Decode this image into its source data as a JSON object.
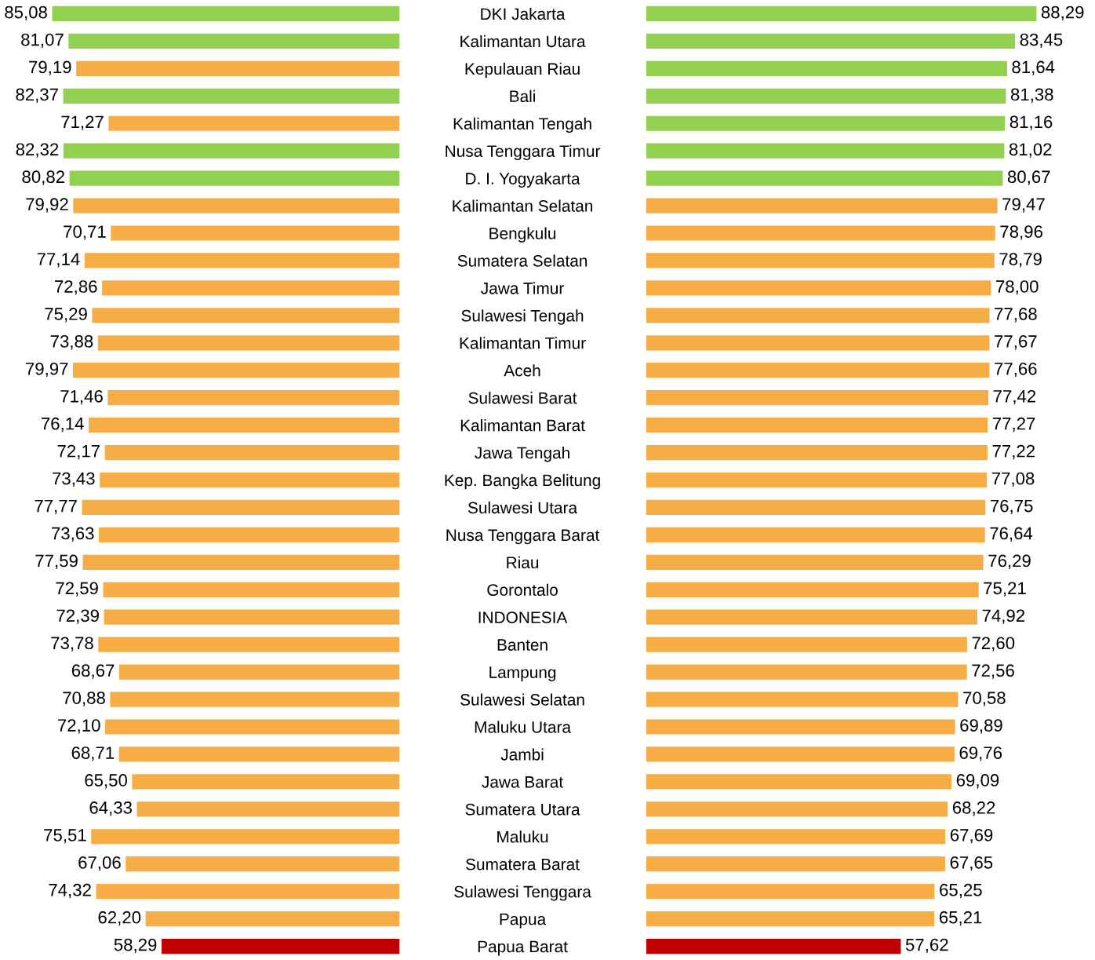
{
  "chart_data": [
    {
      "type": "bar",
      "orientation": "horizontal",
      "tick_labels": "y",
      "categories": [
        "DKI Jakarta",
        "Kalimantan Utara",
        "Kepulauan Riau",
        "Bali",
        "Kalimantan Tengah",
        "Nusa Tenggara Timur",
        "D. I. Yogyakarta",
        "Kalimantan Selatan",
        "Bengkulu",
        "Sumatera Selatan",
        "Jawa Timur",
        "Sulawesi Tengah",
        "Kalimantan Timur",
        "Aceh",
        "Sulawesi Barat",
        "Kalimantan Barat",
        "Jawa Tengah",
        "Kep. Bangka Belitung",
        "Sulawesi Utara",
        "Nusa Tenggara Barat",
        "Riau",
        "Gorontalo",
        "INDONESIA",
        "Banten",
        "Lampung",
        "Sulawesi Selatan",
        "Maluku Utara",
        "Jambi",
        "Jawa Barat",
        "Sumatera Utara",
        "Maluku",
        "Sumatera Barat",
        "Sulawesi Tenggara",
        "Papua",
        "Papua Barat"
      ],
      "values": [
        85.08,
        81.07,
        79.19,
        82.37,
        71.27,
        82.32,
        80.82,
        79.92,
        70.71,
        77.14,
        72.86,
        75.29,
        73.88,
        79.97,
        71.46,
        76.14,
        72.17,
        73.43,
        77.77,
        73.63,
        77.59,
        72.59,
        72.39,
        73.78,
        68.67,
        70.88,
        72.1,
        68.71,
        65.5,
        64.33,
        75.51,
        67.06,
        74.32,
        62.2,
        58.29
      ],
      "value_labels": [
        "85,08",
        "81,07",
        "79,19",
        "82,37",
        "71,27",
        "82,32",
        "80,82",
        "79,92",
        "70,71",
        "77,14",
        "72,86",
        "75,29",
        "73,88",
        "79,97",
        "71,46",
        "76,14",
        "72,17",
        "73,43",
        "77,77",
        "73,63",
        "77,59",
        "72,59",
        "72,39",
        "73,78",
        "68,67",
        "70,88",
        "72,10",
        "68,71",
        "65,50",
        "64,33",
        "75,51",
        "67,06",
        "74,32",
        "62,20",
        "58,29"
      ],
      "colors": [
        "#92d050",
        "#92d050",
        "#f6ad45",
        "#92d050",
        "#f6ad45",
        "#92d050",
        "#92d050",
        "#f6ad45",
        "#f6ad45",
        "#f6ad45",
        "#f6ad45",
        "#f6ad45",
        "#f6ad45",
        "#f6ad45",
        "#f6ad45",
        "#f6ad45",
        "#f6ad45",
        "#f6ad45",
        "#f6ad45",
        "#f6ad45",
        "#f6ad45",
        "#f6ad45",
        "#f6ad45",
        "#f6ad45",
        "#f6ad45",
        "#f6ad45",
        "#f6ad45",
        "#f6ad45",
        "#f6ad45",
        "#f6ad45",
        "#f6ad45",
        "#f6ad45",
        "#f6ad45",
        "#f6ad45",
        "#c00000"
      ]
    },
    {
      "type": "bar",
      "orientation": "horizontal",
      "tick_labels": false,
      "categories": [
        null,
        null,
        null,
        null,
        null,
        null,
        null,
        null,
        null,
        null,
        null,
        null,
        null,
        null,
        null,
        null,
        null,
        null,
        null,
        null,
        null,
        null,
        null,
        null,
        null,
        null,
        null,
        null,
        null,
        null,
        null,
        null,
        null,
        null,
        null
      ],
      "values": [
        88.29,
        83.45,
        81.64,
        81.38,
        81.16,
        81.02,
        80.67,
        79.47,
        78.96,
        78.79,
        78.0,
        77.68,
        77.67,
        77.66,
        77.42,
        77.27,
        77.22,
        77.08,
        76.75,
        76.64,
        76.29,
        75.21,
        74.92,
        72.6,
        72.56,
        70.58,
        69.89,
        69.76,
        69.09,
        68.22,
        67.69,
        67.65,
        65.25,
        65.21,
        57.62
      ],
      "value_labels": [
        "88,29",
        "83,45",
        "81,64",
        "81,38",
        "81,16",
        "81,02",
        "80,67",
        "79,47",
        "78,96",
        "78,79",
        "78,00",
        "77,68",
        "77,67",
        "77,66",
        "77,42",
        "77,27",
        "77,22",
        "77,08",
        "76,75",
        "76,64",
        "76,29",
        "75,21",
        "74,92",
        "72,60",
        "72,56",
        "70,58",
        "69,89",
        "69,76",
        "69,09",
        "68,22",
        "67,69",
        "67,65",
        "65,25",
        "65,21",
        "57,62"
      ],
      "colors": [
        "#92d050",
        "#92d050",
        "#92d050",
        "#92d050",
        "#92d050",
        "#92d050",
        "#92d050",
        "#f6ad45",
        "#f6ad45",
        "#f6ad45",
        "#f6ad45",
        "#f6ad45",
        "#f6ad45",
        "#f6ad45",
        "#f6ad45",
        "#f6ad45",
        "#f6ad45",
        "#f6ad45",
        "#f6ad45",
        "#f6ad45",
        "#f6ad45",
        "#f6ad45",
        "#f6ad45",
        "#f6ad45",
        "#f6ad45",
        "#f6ad45",
        "#f6ad45",
        "#f6ad45",
        "#f6ad45",
        "#f6ad45",
        "#f6ad45",
        "#f6ad45",
        "#f6ad45",
        "#f6ad45",
        "#c00000"
      ]
    }
  ]
}
